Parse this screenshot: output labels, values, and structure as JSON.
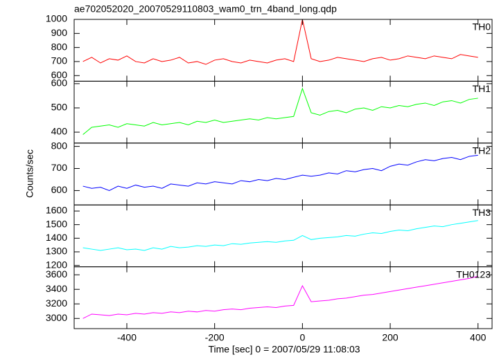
{
  "title": "ae702052020_20070529110803_wam0_trn_4band_long.qdp",
  "xlabel": "Time [sec] 0 = 2007/05/29 11:08:03",
  "ylabel": "Counts/sec",
  "xlim": [
    -520,
    432
  ],
  "xticks": [
    -400,
    -200,
    0,
    200,
    400
  ],
  "x": [
    -500,
    -480,
    -460,
    -440,
    -420,
    -400,
    -380,
    -360,
    -340,
    -320,
    -300,
    -280,
    -260,
    -240,
    -220,
    -200,
    -180,
    -160,
    -140,
    -120,
    -100,
    -80,
    -60,
    -40,
    -20,
    0,
    20,
    40,
    60,
    80,
    100,
    120,
    140,
    160,
    180,
    200,
    220,
    240,
    260,
    280,
    300,
    320,
    340,
    360,
    380,
    400
  ],
  "chart_data": [
    {
      "type": "line",
      "ylim": [
        560,
        1000
      ],
      "yticks": [
        600,
        700,
        800,
        900,
        1000
      ],
      "series": [
        {
          "name": "TH0",
          "color": "#ff0000",
          "values": [
            700,
            730,
            690,
            720,
            710,
            740,
            700,
            690,
            720,
            700,
            710,
            730,
            690,
            700,
            680,
            710,
            720,
            700,
            690,
            710,
            700,
            690,
            710,
            720,
            700,
            1000,
            720,
            700,
            710,
            730,
            720,
            710,
            700,
            720,
            730,
            710,
            720,
            740,
            730,
            720,
            740,
            730,
            720,
            750,
            740,
            730
          ]
        }
      ]
    },
    {
      "type": "line",
      "ylim": [
        355,
        610
      ],
      "yticks": [
        400,
        500,
        600
      ],
      "series": [
        {
          "name": "TH1",
          "color": "#00ff00",
          "values": [
            390,
            420,
            425,
            430,
            420,
            435,
            430,
            425,
            440,
            430,
            435,
            440,
            430,
            445,
            440,
            450,
            440,
            445,
            450,
            455,
            450,
            460,
            455,
            460,
            465,
            580,
            480,
            470,
            485,
            490,
            480,
            495,
            500,
            490,
            505,
            500,
            510,
            505,
            515,
            520,
            510,
            525,
            530,
            520,
            535,
            540
          ]
        }
      ]
    },
    {
      "type": "line",
      "ylim": [
        535,
        815
      ],
      "yticks": [
        600,
        700,
        800
      ],
      "series": [
        {
          "name": "TH2",
          "color": "#0000ff",
          "values": [
            620,
            610,
            615,
            600,
            620,
            610,
            625,
            615,
            620,
            610,
            630,
            625,
            620,
            635,
            630,
            640,
            635,
            630,
            645,
            640,
            650,
            645,
            655,
            650,
            660,
            670,
            665,
            670,
            680,
            675,
            690,
            685,
            695,
            700,
            690,
            710,
            720,
            715,
            730,
            740,
            735,
            745,
            750,
            740,
            755,
            760
          ]
        }
      ]
    },
    {
      "type": "line",
      "ylim": [
        1190,
        1645
      ],
      "yticks": [
        1200,
        1300,
        1400,
        1500,
        1600
      ],
      "series": [
        {
          "name": "TH3",
          "color": "#00ffff",
          "values": [
            1330,
            1320,
            1310,
            1320,
            1330,
            1315,
            1320,
            1310,
            1330,
            1320,
            1340,
            1330,
            1335,
            1345,
            1340,
            1350,
            1345,
            1360,
            1355,
            1365,
            1370,
            1375,
            1370,
            1380,
            1385,
            1420,
            1390,
            1400,
            1405,
            1410,
            1420,
            1415,
            1430,
            1440,
            1435,
            1450,
            1460,
            1455,
            1470,
            1480,
            1490,
            1485,
            1500,
            1510,
            1520,
            1530
          ]
        }
      ]
    },
    {
      "type": "line",
      "ylim": [
        2860,
        3710
      ],
      "yticks": [
        3000,
        3200,
        3400,
        3600
      ],
      "series": [
        {
          "name": "TH0123",
          "color": "#ff00ff",
          "values": [
            3000,
            3060,
            3050,
            3040,
            3060,
            3050,
            3070,
            3060,
            3080,
            3070,
            3090,
            3080,
            3100,
            3090,
            3110,
            3100,
            3120,
            3130,
            3120,
            3140,
            3150,
            3160,
            3150,
            3170,
            3180,
            3450,
            3230,
            3240,
            3250,
            3270,
            3280,
            3300,
            3320,
            3330,
            3350,
            3370,
            3390,
            3410,
            3430,
            3450,
            3470,
            3490,
            3510,
            3530,
            3550,
            3580
          ]
        }
      ]
    }
  ]
}
